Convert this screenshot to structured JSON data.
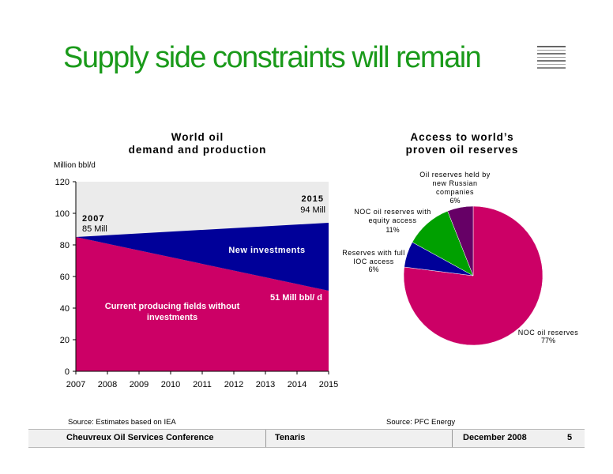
{
  "slide": {
    "title": "Supply side constraints will remain",
    "source_left": "Source: Estimates based on IEA",
    "source_right": "Source: PFC Energy"
  },
  "footer": {
    "conference": "Cheuvreux Oil Services Conference",
    "company": "Tenaris",
    "date": "December 2008",
    "page": "5"
  },
  "chart_data": [
    {
      "type": "area",
      "title": "World oil demand and production",
      "title_lines": [
        "World oil",
        "demand and production"
      ],
      "ylabel": "Million bbl/d",
      "xlabel": "",
      "x": [
        "2007",
        "2008",
        "2009",
        "2010",
        "2011",
        "2012",
        "2013",
        "2014",
        "2015"
      ],
      "ylim": [
        0,
        120
      ],
      "yticks": [
        0,
        20,
        40,
        60,
        80,
        100,
        120
      ],
      "series": [
        {
          "name": "Current producing fields without investments",
          "color": "#cc0066",
          "start": 85,
          "end": 51
        },
        {
          "name": "New investments",
          "color": "#000099",
          "start": 0,
          "end": 43
        }
      ],
      "demand_total": {
        "start": 85,
        "end": 94
      },
      "background_color": "#ebebeb",
      "labels": {
        "current": "Current producing fields without investments",
        "new": "New investments",
        "end_production": "51 Mill bbl/ d",
        "start_year": "2007",
        "start_value": "85 Mill",
        "end_year": "2015",
        "end_value": "94 Mill"
      }
    },
    {
      "type": "pie",
      "title": "Access to world’s proven oil reserves",
      "title_lines": [
        "Access to world’s",
        "proven oil reserves"
      ],
      "slices": [
        {
          "label": "NOC oil reserves",
          "value": 77,
          "pct": "77%",
          "color": "#cc0066"
        },
        {
          "label": "Reserves with full IOC access",
          "value": 6,
          "pct": "6%",
          "color": "#000099"
        },
        {
          "label": "NOC oil reserves with equity access",
          "value": 11,
          "pct": "11%",
          "color": "#00a000"
        },
        {
          "label": "Oil reserves held by new Russian companies",
          "value": 6,
          "pct": "6%",
          "color": "#660066"
        }
      ]
    }
  ]
}
